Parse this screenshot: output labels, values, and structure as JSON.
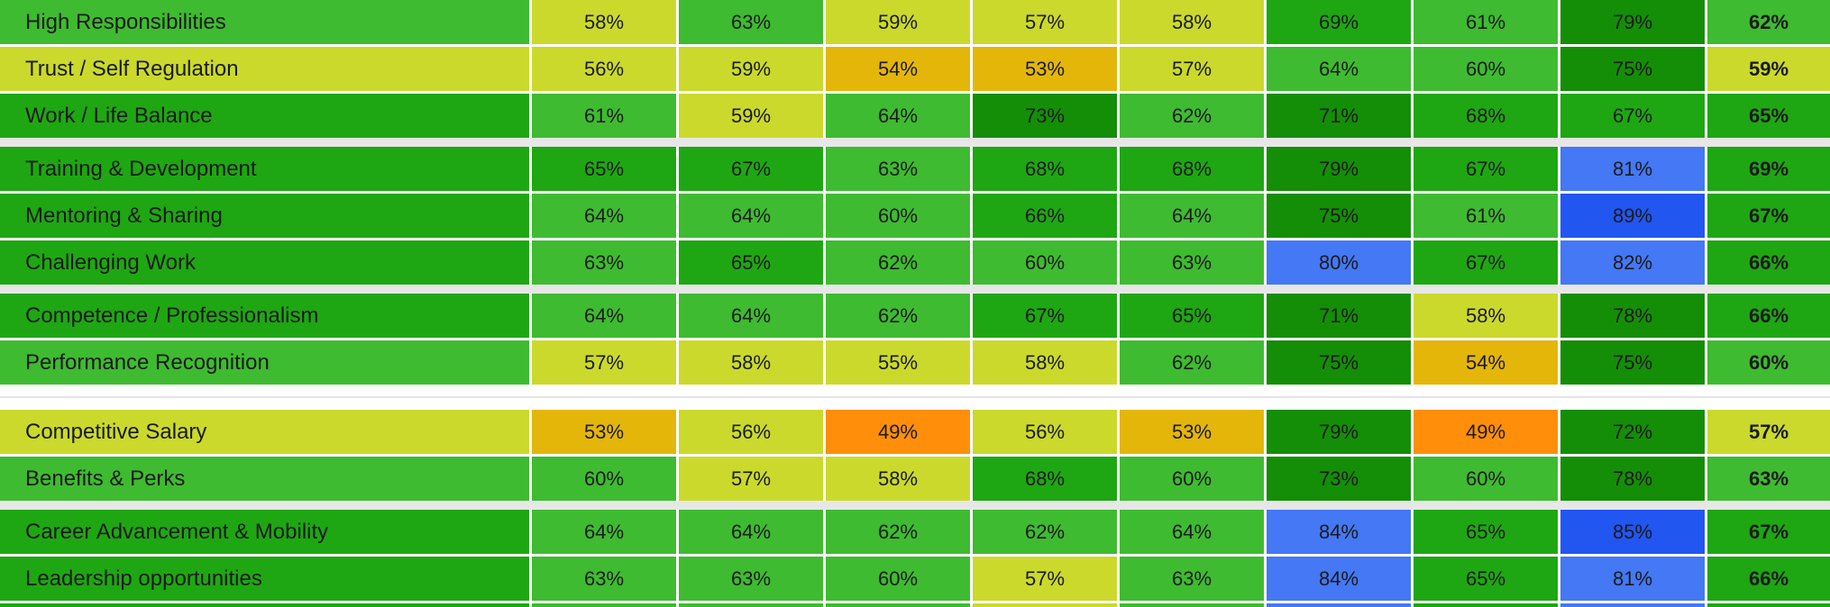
{
  "chart_data": {
    "type": "heatmap",
    "title": "",
    "value_suffix": "%",
    "column_headers_visible": false,
    "num_value_columns": 8,
    "last_column_is_bold_summary": true,
    "rows": [
      {
        "label": "High Responsibilities",
        "values": [
          58,
          63,
          59,
          57,
          58,
          69,
          61,
          79
        ],
        "summary": 62,
        "group_end": false,
        "section_end": false
      },
      {
        "label": "Trust / Self Regulation",
        "values": [
          56,
          59,
          54,
          53,
          57,
          64,
          60,
          75
        ],
        "summary": 59,
        "group_end": false,
        "section_end": false
      },
      {
        "label": "Work / Life Balance",
        "values": [
          61,
          59,
          64,
          73,
          62,
          71,
          68,
          67
        ],
        "summary": 65,
        "group_end": true,
        "section_end": false
      },
      {
        "label": "Training & Development",
        "values": [
          65,
          67,
          63,
          68,
          68,
          79,
          67,
          81
        ],
        "summary": 69,
        "group_end": false,
        "section_end": false
      },
      {
        "label": "Mentoring & Sharing",
        "values": [
          64,
          64,
          60,
          66,
          64,
          75,
          61,
          89
        ],
        "summary": 67,
        "group_end": false,
        "section_end": false
      },
      {
        "label": "Challenging Work",
        "values": [
          63,
          65,
          62,
          60,
          63,
          80,
          67,
          82
        ],
        "summary": 66,
        "group_end": true,
        "section_end": false
      },
      {
        "label": "Competence / Professionalism",
        "values": [
          64,
          64,
          62,
          67,
          65,
          71,
          58,
          78
        ],
        "summary": 66,
        "group_end": false,
        "section_end": false
      },
      {
        "label": "Performance Recognition",
        "values": [
          57,
          58,
          55,
          58,
          62,
          75,
          54,
          75
        ],
        "summary": 60,
        "group_end": false,
        "section_end": true
      },
      {
        "label": "Competitive Salary",
        "values": [
          53,
          56,
          49,
          56,
          53,
          79,
          49,
          72
        ],
        "summary": 57,
        "group_end": false,
        "section_end": false
      },
      {
        "label": "Benefits & Perks",
        "values": [
          60,
          57,
          58,
          68,
          60,
          73,
          60,
          78
        ],
        "summary": 63,
        "group_end": true,
        "section_end": false
      },
      {
        "label": "Career Advancement & Mobility",
        "values": [
          64,
          64,
          62,
          62,
          64,
          84,
          65,
          85
        ],
        "summary": 67,
        "group_end": false,
        "section_end": false
      },
      {
        "label": "Leadership opportunities",
        "values": [
          63,
          63,
          60,
          57,
          63,
          84,
          65,
          81
        ],
        "summary": 66,
        "group_end": false,
        "section_end": false
      }
    ],
    "partial_row_at_bottom": true
  },
  "color_scale": [
    {
      "max": 52,
      "name": "orange",
      "color": "#FF8F0A"
    },
    {
      "max": 54,
      "name": "amber",
      "color": "#E4B60A"
    },
    {
      "max": 59,
      "name": "yellow-green",
      "color": "#CBD92C"
    },
    {
      "max": 64,
      "name": "light-green",
      "color": "#3EBB30"
    },
    {
      "max": 69,
      "name": "green",
      "color": "#1EA712"
    },
    {
      "max": 79,
      "name": "dark-green",
      "color": "#148E06"
    },
    {
      "max": 84,
      "name": "blue",
      "color": "#4478F4"
    },
    {
      "max": 100,
      "name": "deep-blue",
      "color": "#2156F1"
    }
  ],
  "partial_bottom_row": {
    "label_bucket": "green",
    "cell_buckets": [
      "light-green",
      "light-green",
      "light-green",
      "yellow-green",
      "light-green",
      "blue",
      "green",
      "blue"
    ],
    "summary_bucket": "green"
  },
  "text_color": "#1a1a1a"
}
